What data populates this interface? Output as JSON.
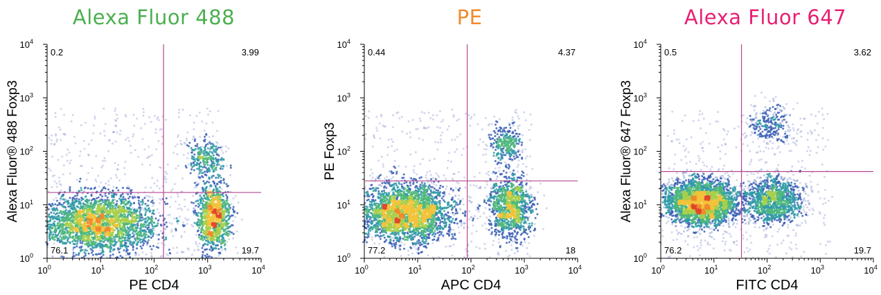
{
  "chart_data": [
    {
      "type": "scatter",
      "title": "Alexa Fluor 488",
      "title_color": "#4caf50",
      "xlabel": "PE CD4",
      "ylabel": "Alexa Fluor® 488 Foxp3",
      "x_scale": "log",
      "y_scale": "log",
      "xlim": [
        1,
        10000
      ],
      "ylim": [
        1,
        10000
      ],
      "x_ticks": [
        1,
        10,
        100,
        1000,
        10000
      ],
      "y_ticks": [
        1,
        10,
        100,
        1000,
        10000
      ],
      "gate": {
        "x": 150,
        "y": 17
      },
      "quadrants": {
        "upper_left": "0.2",
        "upper_right": "3.99",
        "lower_left": "76.1",
        "lower_right": "19.7"
      },
      "populations": [
        {
          "x": 9,
          "y": 4.5,
          "sx": 0.6,
          "sy": 0.28,
          "n": 2600
        },
        {
          "x": 1300,
          "y": 6,
          "sx": 0.16,
          "sy": 0.3,
          "n": 1100
        },
        {
          "x": 900,
          "y": 75,
          "sx": 0.18,
          "sy": 0.18,
          "n": 260
        }
      ]
    },
    {
      "type": "scatter",
      "title": "PE",
      "title_color": "#f08a2c",
      "xlabel": "APC CD4",
      "ylabel": "PE Foxp3",
      "x_scale": "log",
      "y_scale": "log",
      "xlim": [
        1,
        10000
      ],
      "ylim": [
        1,
        10000
      ],
      "x_ticks": [
        1,
        10,
        100,
        1000,
        10000
      ],
      "y_ticks": [
        1,
        10,
        100,
        1000,
        10000
      ],
      "gate": {
        "x": 85,
        "y": 28
      },
      "quadrants": {
        "upper_left": "0.44",
        "upper_right": "4.37",
        "lower_left": "77.2",
        "lower_right": "18"
      },
      "populations": [
        {
          "x": 6,
          "y": 7,
          "sx": 0.45,
          "sy": 0.28,
          "n": 2600
        },
        {
          "x": 550,
          "y": 9,
          "sx": 0.2,
          "sy": 0.3,
          "n": 1000
        },
        {
          "x": 450,
          "y": 140,
          "sx": 0.18,
          "sy": 0.18,
          "n": 260
        }
      ]
    },
    {
      "type": "scatter",
      "title": "Alexa Fluor 647",
      "title_color": "#e91e73",
      "xlabel": "FITC CD4",
      "ylabel": "Alexa Fluor® 647 Foxp3",
      "x_scale": "log",
      "y_scale": "log",
      "xlim": [
        1,
        10000
      ],
      "ylim": [
        1,
        10000
      ],
      "x_ticks": [
        1,
        10,
        100,
        1000,
        10000
      ],
      "y_ticks": [
        1,
        10,
        100,
        1000,
        10000
      ],
      "gate": {
        "x": 33,
        "y": 42
      },
      "quadrants": {
        "upper_left": "0.5",
        "upper_right": "3.62",
        "lower_left": "76.2",
        "lower_right": "19.7"
      },
      "populations": [
        {
          "x": 5.5,
          "y": 11,
          "sx": 0.35,
          "sy": 0.22,
          "n": 2600
        },
        {
          "x": 130,
          "y": 12,
          "sx": 0.3,
          "sy": 0.22,
          "n": 1100
        },
        {
          "x": 110,
          "y": 300,
          "sx": 0.22,
          "sy": 0.2,
          "n": 260
        }
      ]
    }
  ]
}
